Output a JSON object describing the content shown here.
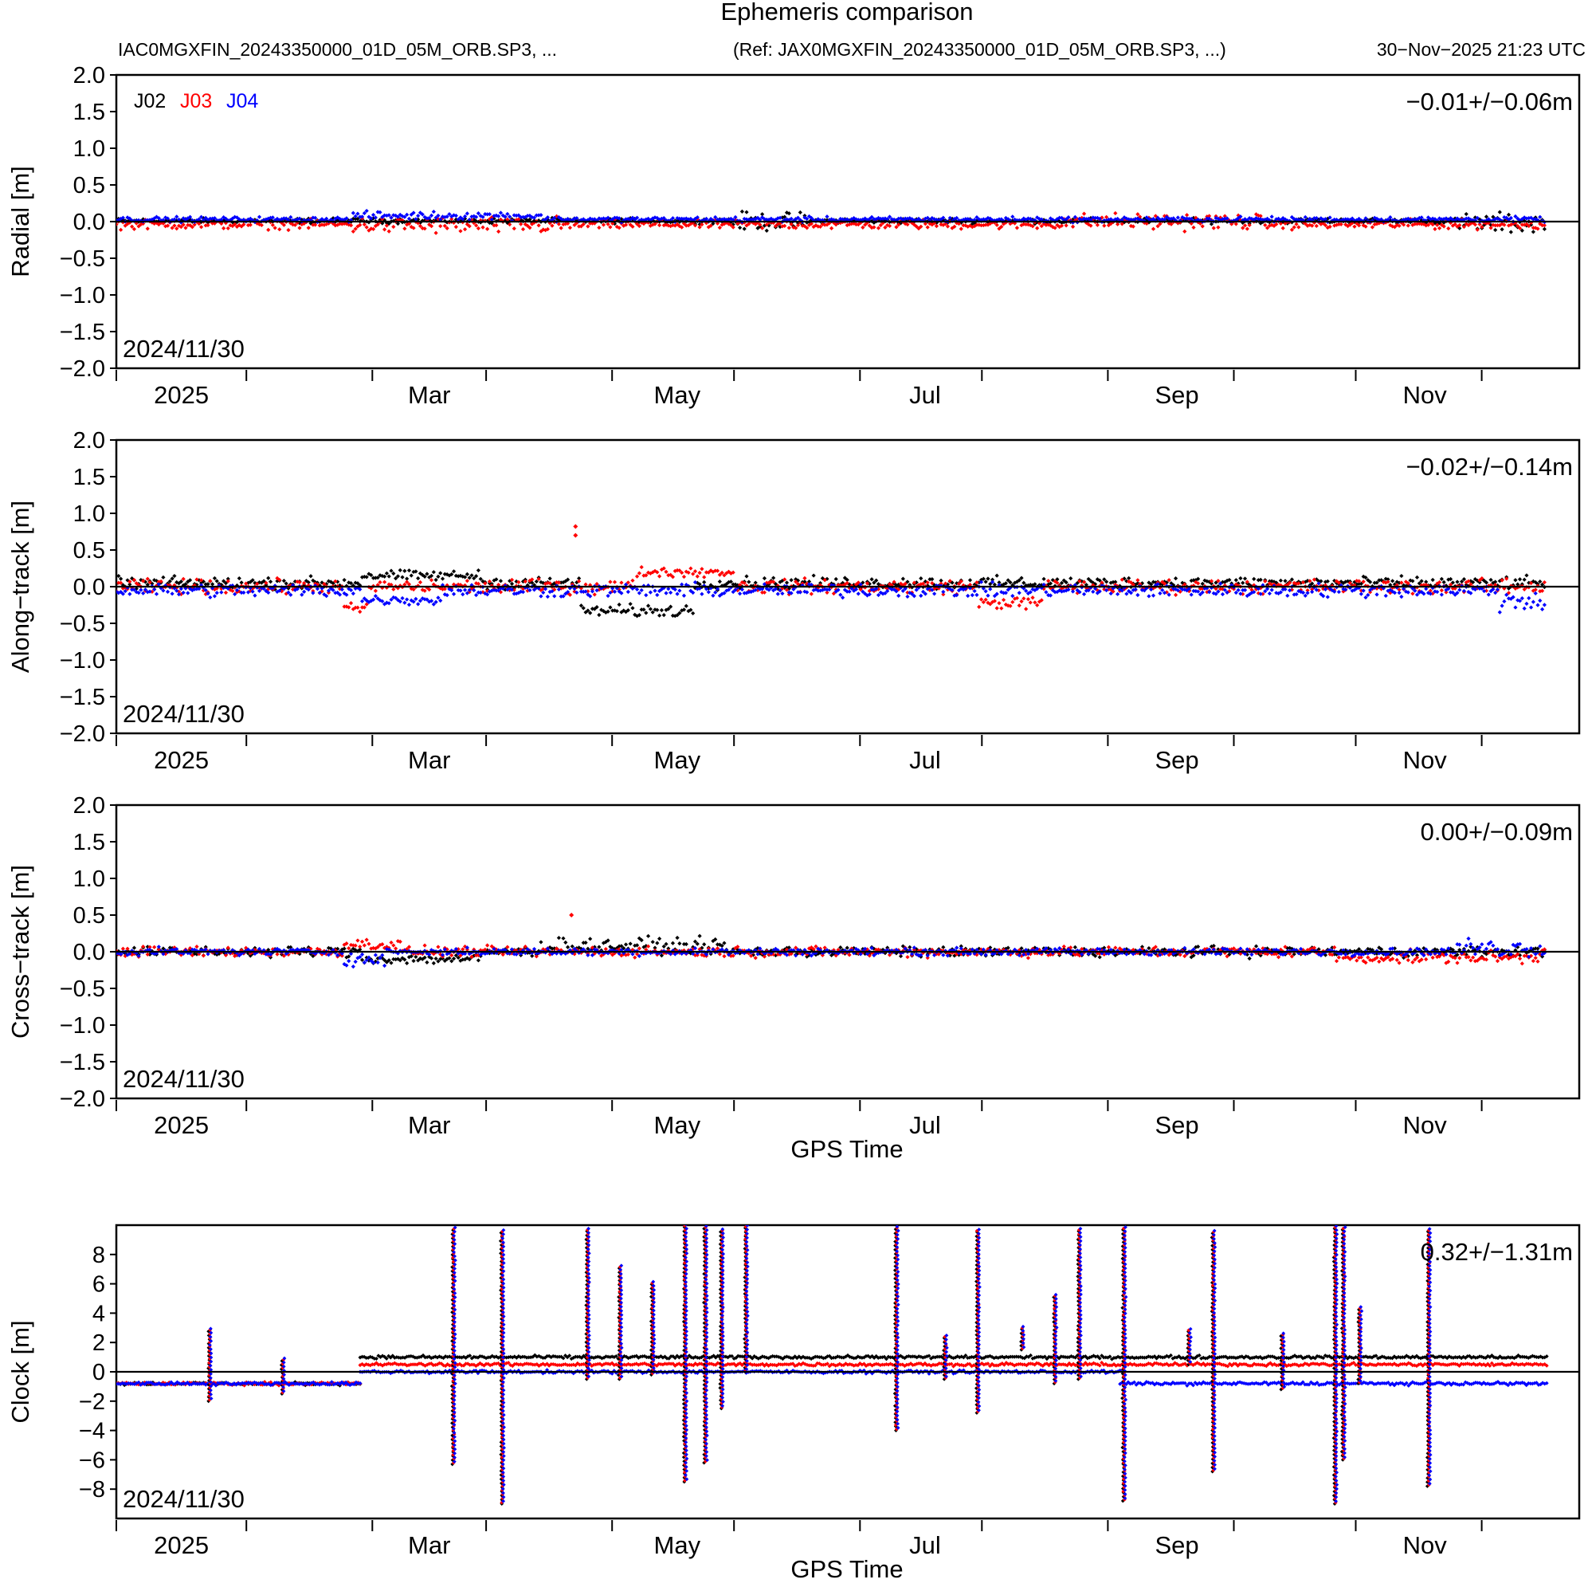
{
  "header": {
    "title": "Ephemeris comparison",
    "file_label": "IAC0MGXFIN_20243350000_01D_05M_ORB.SP3, ...",
    "ref_label": "(Ref: JAX0MGXFIN_20243350000_01D_05M_ORB.SP3, ...)",
    "timestamp": "30−Nov−2025 21:23 UTC"
  },
  "colors": {
    "J02": "#000000",
    "J03": "#ff0000",
    "J04": "#0000ff",
    "axis": "#000000"
  },
  "legend": [
    "J02",
    "J03",
    "J04"
  ],
  "x_axis": {
    "start_label": "2024/11/30",
    "range_days": [
      0,
      360
    ],
    "minor_tick_days": [
      0,
      32,
      63,
      91,
      122,
      152,
      183,
      213,
      244,
      275,
      305,
      336
    ],
    "month_labels": [
      {
        "label": "2025",
        "day": 16
      },
      {
        "label": "Mar",
        "day": 77
      },
      {
        "label": "May",
        "day": 138
      },
      {
        "label": "Jul",
        "day": 199
      },
      {
        "label": "Sep",
        "day": 261
      },
      {
        "label": "Nov",
        "day": 322
      }
    ],
    "xlabel": "GPS Time"
  },
  "chart_data": [
    {
      "type": "scatter",
      "id": "radial",
      "ylabel": "Radial [m]",
      "ylim": [
        -2.0,
        2.0
      ],
      "yticks": [
        "2.0",
        "1.5",
        "1.0",
        "0.5",
        "0.0",
        "−0.5",
        "−1.0",
        "−1.5",
        "−2.0"
      ],
      "ytick_values": [
        2.0,
        1.5,
        1.0,
        0.5,
        0.0,
        -0.5,
        -1.0,
        -1.5,
        -2.0
      ],
      "stat": "−0.01+/−0.06m",
      "date_label": "2024/11/30",
      "show_legend": true,
      "show_xlabel": false,
      "series": [
        {
          "name": "J02",
          "mean": 0.01,
          "spread": 0.05,
          "anomalies": [
            {
              "from": 150,
              "to": 170,
              "offset": 0.0,
              "spread": 0.18
            },
            {
              "from": 330,
              "to": 352,
              "offset": -0.02,
              "spread": 0.2
            }
          ]
        },
        {
          "name": "J03",
          "mean": -0.04,
          "spread": 0.09,
          "anomalies": [
            {
              "from": 58,
              "to": 112,
              "offset": -0.05,
              "spread": 0.17
            },
            {
              "from": 232,
              "to": 282,
              "offset": 0.0,
              "spread": 0.16
            }
          ]
        },
        {
          "name": "J04",
          "mean": 0.03,
          "spread": 0.05,
          "anomalies": [
            {
              "from": 58,
              "to": 105,
              "offset": 0.08,
              "spread": 0.08
            }
          ]
        }
      ]
    },
    {
      "type": "scatter",
      "id": "along",
      "ylabel": "Along−track [m]",
      "ylim": [
        -2.0,
        2.0
      ],
      "yticks": [
        "2.0",
        "1.5",
        "1.0",
        "0.5",
        "0.0",
        "−0.5",
        "−1.0",
        "−1.5",
        "−2.0"
      ],
      "ytick_values": [
        2.0,
        1.5,
        1.0,
        0.5,
        0.0,
        -0.5,
        -1.0,
        -1.5,
        -2.0
      ],
      "stat": "−0.02+/−0.14m",
      "date_label": "2024/11/30",
      "show_legend": false,
      "show_xlabel": false,
      "series": [
        {
          "name": "J02",
          "mean": 0.05,
          "spread": 0.12,
          "anomalies": [
            {
              "from": 114,
              "to": 142,
              "offset": -0.33,
              "spread": 0.12
            },
            {
              "from": 60,
              "to": 90,
              "offset": 0.15,
              "spread": 0.1
            }
          ]
        },
        {
          "name": "J03",
          "mean": 0.0,
          "spread": 0.14,
          "anomalies": [
            {
              "from": 56,
              "to": 62,
              "offset": -0.3,
              "spread": 0.1
            },
            {
              "from": 128,
              "to": 152,
              "offset": 0.2,
              "spread": 0.1
            },
            {
              "from": 212,
              "to": 228,
              "offset": -0.22,
              "spread": 0.12
            }
          ],
          "spikes": [
            {
              "day": 113,
              "value": 0.82
            },
            {
              "day": 113,
              "value": 0.7
            }
          ]
        },
        {
          "name": "J04",
          "mean": -0.05,
          "spread": 0.13,
          "anomalies": [
            {
              "from": 60,
              "to": 80,
              "offset": -0.18,
              "spread": 0.1
            },
            {
              "from": 340,
              "to": 352,
              "offset": -0.2,
              "spread": 0.2
            }
          ]
        }
      ]
    },
    {
      "type": "scatter",
      "id": "cross",
      "ylabel": "Cross−track [m]",
      "ylim": [
        -2.0,
        2.0
      ],
      "yticks": [
        "2.0",
        "1.5",
        "1.0",
        "0.5",
        "0.0",
        "−0.5",
        "−1.0",
        "−1.5",
        "−2.0"
      ],
      "ytick_values": [
        2.0,
        1.5,
        1.0,
        0.5,
        0.0,
        -0.5,
        -1.0,
        -1.5,
        -2.0
      ],
      "stat": "0.00+/−0.09m",
      "date_label": "2024/11/30",
      "show_legend": false,
      "show_xlabel": true,
      "series": [
        {
          "name": "J02",
          "mean": 0.0,
          "spread": 0.1,
          "anomalies": [
            {
              "from": 60,
              "to": 90,
              "offset": -0.1,
              "spread": 0.1
            },
            {
              "from": 104,
              "to": 150,
              "offset": 0.08,
              "spread": 0.15
            }
          ]
        },
        {
          "name": "J03",
          "mean": 0.0,
          "spread": 0.1,
          "anomalies": [
            {
              "from": 56,
              "to": 70,
              "offset": 0.1,
              "spread": 0.12
            },
            {
              "from": 300,
              "to": 350,
              "offset": -0.08,
              "spread": 0.12
            }
          ],
          "spikes": [
            {
              "day": 112,
              "value": 0.5
            }
          ]
        },
        {
          "name": "J04",
          "mean": 0.0,
          "spread": 0.07,
          "anomalies": [
            {
              "from": 56,
              "to": 66,
              "offset": -0.1,
              "spread": 0.12
            },
            {
              "from": 330,
              "to": 352,
              "offset": 0.05,
              "spread": 0.18
            }
          ]
        }
      ]
    },
    {
      "type": "scatter",
      "id": "clock",
      "ylabel": "Clock [m]",
      "ylim": [
        -10.0,
        10.0
      ],
      "yticks": [
        "8",
        "6",
        "4",
        "2",
        "0",
        "−2",
        "−4",
        "−6",
        "−8"
      ],
      "ytick_values": [
        8,
        6,
        4,
        2,
        0,
        -2,
        -4,
        -6,
        -8
      ],
      "stat": "0.32+/−1.31m",
      "date_label": "2024/11/30",
      "show_legend": false,
      "show_xlabel": true,
      "series": [
        {
          "name": "J02",
          "segments": [
            {
              "from": 0,
              "to": 60,
              "value": -0.8
            },
            {
              "from": 60,
              "to": 352,
              "value": 1.0
            }
          ]
        },
        {
          "name": "J03",
          "segments": [
            {
              "from": 0,
              "to": 60,
              "value": -0.8
            },
            {
              "from": 60,
              "to": 352,
              "value": 0.5
            }
          ]
        },
        {
          "name": "J04",
          "segments": [
            {
              "from": 0,
              "to": 60,
              "value": -0.8
            },
            {
              "from": 60,
              "to": 247,
              "value": 0.0
            },
            {
              "from": 247,
              "to": 352,
              "value": -0.8
            }
          ]
        }
      ],
      "spikes": [
        {
          "day": 23,
          "low": -2.0,
          "high": 2.8
        },
        {
          "day": 41,
          "low": -1.5,
          "high": 0.8
        },
        {
          "day": 83,
          "low": -6.3,
          "high": 9.8
        },
        {
          "day": 95,
          "low": -9.0,
          "high": 9.5
        },
        {
          "day": 116,
          "low": -0.5,
          "high": 9.8
        },
        {
          "day": 124,
          "low": -0.5,
          "high": 7.3
        },
        {
          "day": 132,
          "low": -0.2,
          "high": 6.2
        },
        {
          "day": 140,
          "low": -7.5,
          "high": 9.9
        },
        {
          "day": 145,
          "low": -6.2,
          "high": 9.8
        },
        {
          "day": 149,
          "low": -2.5,
          "high": 9.7
        },
        {
          "day": 155,
          "low": 0.0,
          "high": 9.9
        },
        {
          "day": 192,
          "low": -4.0,
          "high": 9.9
        },
        {
          "day": 204,
          "low": -0.5,
          "high": 2.5
        },
        {
          "day": 212,
          "low": -2.8,
          "high": 9.8
        },
        {
          "day": 223,
          "low": 1.5,
          "high": 3.1
        },
        {
          "day": 231,
          "low": -0.8,
          "high": 5.2
        },
        {
          "day": 237,
          "low": -0.5,
          "high": 9.7
        },
        {
          "day": 248,
          "low": -8.8,
          "high": 9.9
        },
        {
          "day": 264,
          "low": 0.5,
          "high": 2.8
        },
        {
          "day": 270,
          "low": -6.8,
          "high": 9.6
        },
        {
          "day": 287,
          "low": -1.2,
          "high": 2.7
        },
        {
          "day": 300,
          "low": -9.0,
          "high": 9.9
        },
        {
          "day": 302,
          "low": -6.0,
          "high": 9.8
        },
        {
          "day": 306,
          "low": -0.8,
          "high": 4.4
        },
        {
          "day": 323,
          "low": -7.8,
          "high": 9.8
        }
      ]
    }
  ]
}
